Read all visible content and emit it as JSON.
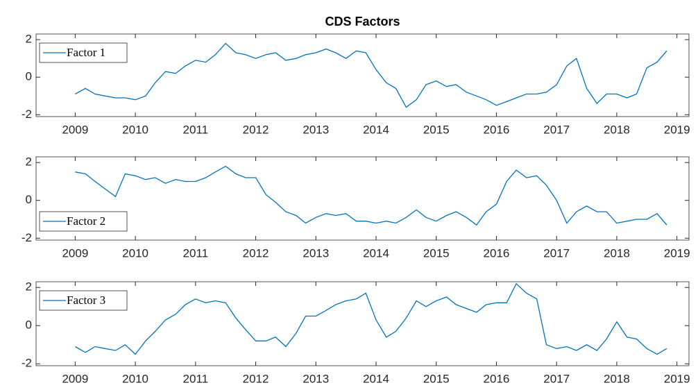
{
  "chart_data": [
    {
      "type": "line",
      "title": "CDS Factors",
      "x": [
        2009,
        2009.17,
        2009.33,
        2009.5,
        2009.67,
        2009.83,
        2010,
        2010.17,
        2010.33,
        2010.5,
        2010.67,
        2010.83,
        2011,
        2011.17,
        2011.33,
        2011.5,
        2011.67,
        2011.83,
        2012,
        2012.17,
        2012.33,
        2012.5,
        2012.67,
        2012.83,
        2013,
        2013.17,
        2013.33,
        2013.5,
        2013.67,
        2013.83,
        2014,
        2014.17,
        2014.33,
        2014.5,
        2014.67,
        2014.83,
        2015,
        2015.17,
        2015.33,
        2015.5,
        2015.67,
        2015.83,
        2016,
        2016.17,
        2016.33,
        2016.5,
        2016.67,
        2016.83,
        2017,
        2017.17,
        2017.33,
        2017.5,
        2017.67,
        2017.83,
        2018,
        2018.17,
        2018.33,
        2018.5,
        2018.67,
        2018.83
      ],
      "series": [
        {
          "name": "Factor 1",
          "color": "#0072bd",
          "values": [
            -0.9,
            -0.6,
            -0.9,
            -1.0,
            -1.1,
            -1.1,
            -1.2,
            -1.0,
            -0.3,
            0.3,
            0.2,
            0.6,
            0.9,
            0.8,
            1.2,
            1.8,
            1.3,
            1.2,
            1.0,
            1.2,
            1.3,
            0.9,
            1.0,
            1.2,
            1.3,
            1.5,
            1.3,
            1.0,
            1.4,
            1.3,
            0.4,
            -0.3,
            -0.6,
            -1.6,
            -1.2,
            -0.4,
            -0.2,
            -0.5,
            -0.4,
            -0.8,
            -1.0,
            -1.2,
            -1.5,
            -1.3,
            -1.1,
            -0.9,
            -0.9,
            -0.8,
            -0.4,
            0.6,
            1.0,
            -0.6,
            -1.4,
            -0.9,
            -0.9,
            -1.1,
            -0.9,
            0.5,
            0.8,
            1.4
          ]
        }
      ],
      "xlim": [
        2008.35,
        2019.2
      ],
      "xticks": [
        2009,
        2010,
        2011,
        2012,
        2013,
        2014,
        2015,
        2016,
        2017,
        2018,
        2019
      ],
      "ylim": [
        -2.1,
        2.3
      ],
      "yticks": [
        -2,
        0,
        2
      ],
      "legend": "upper left"
    },
    {
      "type": "line",
      "x": [
        2009,
        2009.17,
        2009.33,
        2009.5,
        2009.67,
        2009.83,
        2010,
        2010.17,
        2010.33,
        2010.5,
        2010.67,
        2010.83,
        2011,
        2011.17,
        2011.33,
        2011.5,
        2011.67,
        2011.83,
        2012,
        2012.17,
        2012.33,
        2012.5,
        2012.67,
        2012.83,
        2013,
        2013.17,
        2013.33,
        2013.5,
        2013.67,
        2013.83,
        2014,
        2014.17,
        2014.33,
        2014.5,
        2014.67,
        2014.83,
        2015,
        2015.17,
        2015.33,
        2015.5,
        2015.67,
        2015.83,
        2016,
        2016.17,
        2016.33,
        2016.5,
        2016.67,
        2016.83,
        2017,
        2017.17,
        2017.33,
        2017.5,
        2017.67,
        2017.83,
        2018,
        2018.17,
        2018.33,
        2018.5,
        2018.67,
        2018.83
      ],
      "series": [
        {
          "name": "Factor 2",
          "color": "#0072bd",
          "values": [
            1.5,
            1.4,
            1.0,
            0.6,
            0.2,
            1.4,
            1.3,
            1.1,
            1.2,
            0.9,
            1.1,
            1.0,
            1.0,
            1.2,
            1.5,
            1.8,
            1.4,
            1.2,
            1.2,
            0.3,
            -0.1,
            -0.6,
            -0.8,
            -1.2,
            -0.9,
            -0.7,
            -0.8,
            -0.7,
            -1.1,
            -1.1,
            -1.2,
            -1.1,
            -1.2,
            -0.9,
            -0.5,
            -0.9,
            -1.1,
            -0.8,
            -0.6,
            -0.9,
            -1.3,
            -0.6,
            -0.2,
            1.0,
            1.6,
            1.2,
            1.3,
            0.8,
            0.0,
            -1.2,
            -0.6,
            -0.3,
            -0.6,
            -0.6,
            -1.2,
            -1.1,
            -1.0,
            -1.0,
            -0.7,
            -1.3
          ]
        }
      ],
      "xlim": [
        2008.35,
        2019.2
      ],
      "xticks": [
        2009,
        2010,
        2011,
        2012,
        2013,
        2014,
        2015,
        2016,
        2017,
        2018,
        2019
      ],
      "ylim": [
        -2.1,
        2.3
      ],
      "yticks": [
        -2,
        0,
        2
      ],
      "legend": "lower left"
    },
    {
      "type": "line",
      "x": [
        2009,
        2009.17,
        2009.33,
        2009.5,
        2009.67,
        2009.83,
        2010,
        2010.17,
        2010.33,
        2010.5,
        2010.67,
        2010.83,
        2011,
        2011.17,
        2011.33,
        2011.5,
        2011.67,
        2011.83,
        2012,
        2012.17,
        2012.33,
        2012.5,
        2012.67,
        2012.83,
        2013,
        2013.17,
        2013.33,
        2013.5,
        2013.67,
        2013.83,
        2014,
        2014.17,
        2014.33,
        2014.5,
        2014.67,
        2014.83,
        2015,
        2015.17,
        2015.33,
        2015.5,
        2015.67,
        2015.83,
        2016,
        2016.17,
        2016.33,
        2016.5,
        2016.67,
        2016.83,
        2017,
        2017.17,
        2017.33,
        2017.5,
        2017.67,
        2017.83,
        2018,
        2018.17,
        2018.33,
        2018.5,
        2018.67,
        2018.83
      ],
      "series": [
        {
          "name": "Factor 3",
          "color": "#0072bd",
          "values": [
            -1.1,
            -1.4,
            -1.1,
            -1.2,
            -1.3,
            -1.0,
            -1.5,
            -0.8,
            -0.3,
            0.3,
            0.6,
            1.1,
            1.4,
            1.2,
            1.3,
            1.2,
            0.4,
            -0.2,
            -0.8,
            -0.8,
            -0.6,
            -1.1,
            -0.4,
            0.5,
            0.5,
            0.8,
            1.1,
            1.3,
            1.4,
            1.7,
            0.3,
            -0.6,
            -0.3,
            0.4,
            1.3,
            1.0,
            1.3,
            1.5,
            1.1,
            0.9,
            0.7,
            1.1,
            1.2,
            1.2,
            2.2,
            1.7,
            1.4,
            -1.0,
            -1.2,
            -1.1,
            -1.3,
            -1.0,
            -1.3,
            -0.7,
            0.2,
            -0.6,
            -0.7,
            -1.2,
            -1.5,
            -1.2
          ]
        }
      ],
      "xlim": [
        2008.35,
        2019.2
      ],
      "xticks": [
        2009,
        2010,
        2011,
        2012,
        2013,
        2014,
        2015,
        2016,
        2017,
        2018,
        2019
      ],
      "ylim": [
        -2.1,
        2.3
      ],
      "yticks": [
        -2,
        0,
        2
      ],
      "legend": "upper left"
    }
  ]
}
